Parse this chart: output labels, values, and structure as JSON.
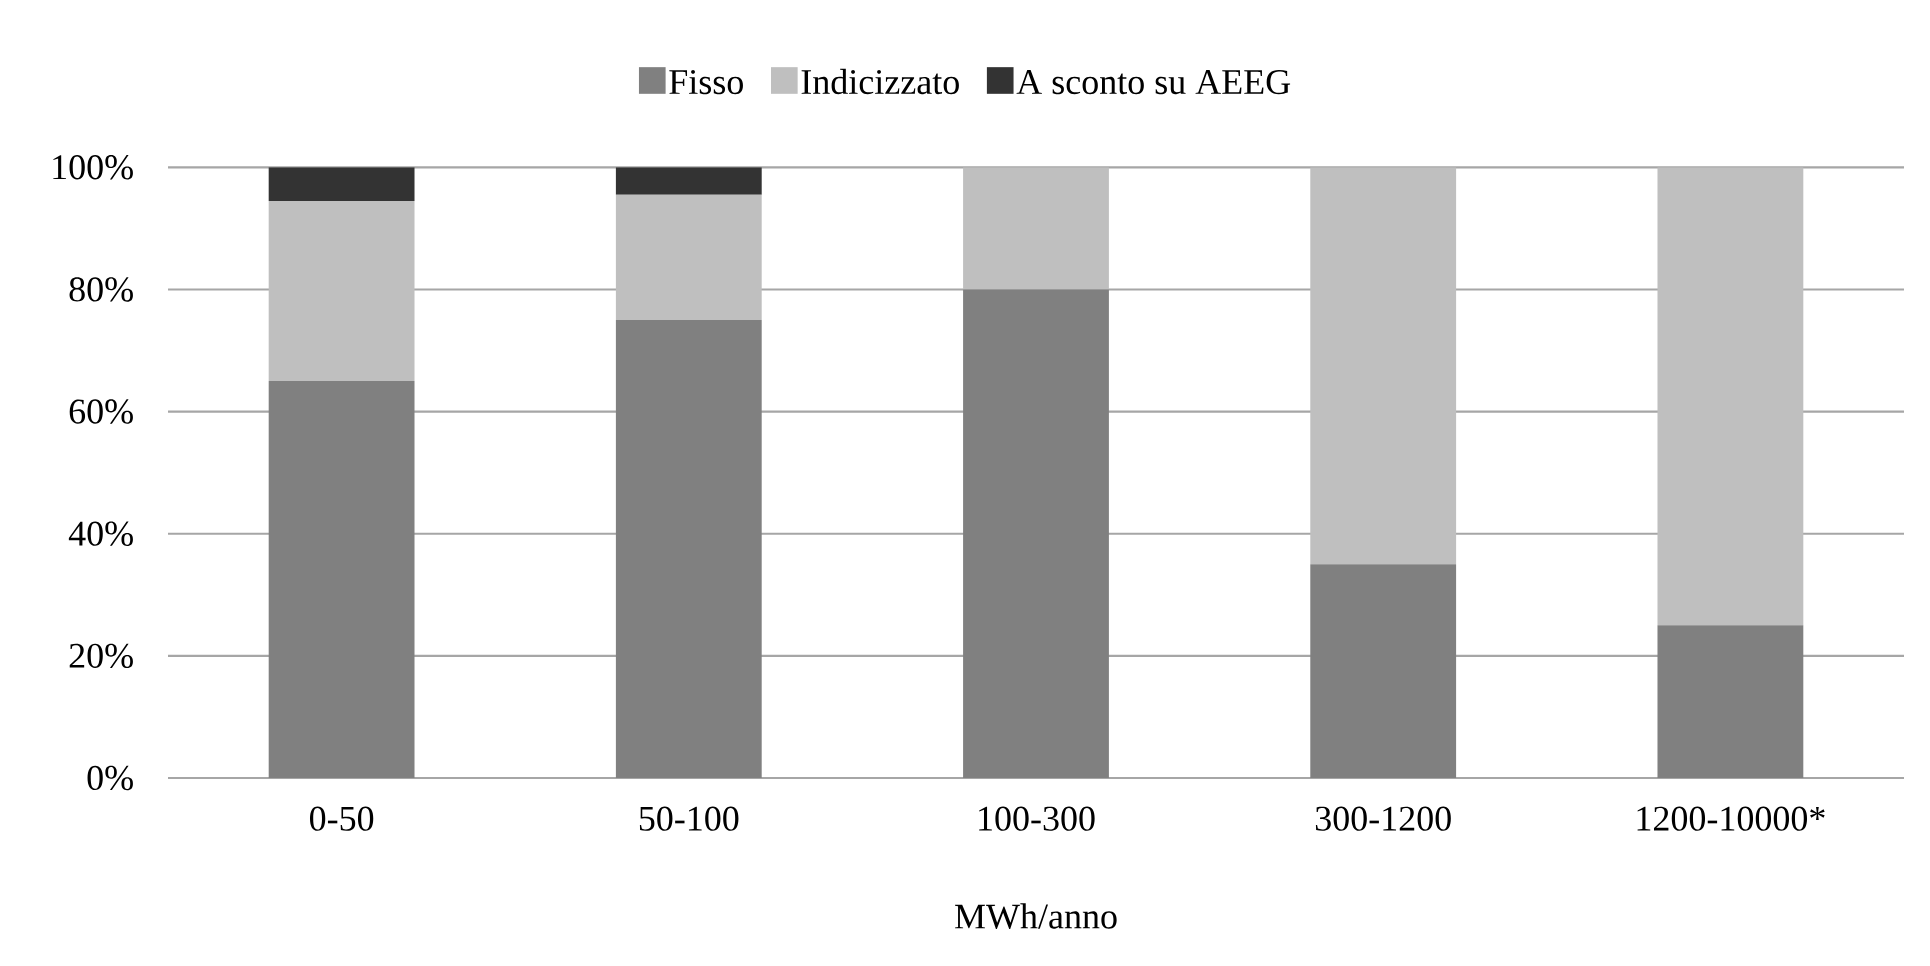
{
  "chart_data": {
    "type": "bar",
    "stacked": true,
    "xlabel": "MWh/anno",
    "categories": [
      "0-50",
      "50-100",
      "100-300",
      "300-1200",
      "1200-10000*"
    ],
    "series": [
      {
        "name": "Fisso",
        "color": "#808080",
        "values": [
          65,
          75,
          80,
          35,
          25
        ]
      },
      {
        "name": "Indicizzato",
        "color": "#bfbfbf",
        "values": [
          29.5,
          20.5,
          20,
          65,
          75
        ]
      },
      {
        "name": "A sconto su AEEG",
        "color": "#333333",
        "values": [
          5.5,
          4.5,
          0,
          0,
          0
        ]
      }
    ],
    "ylim": [
      0,
      100
    ],
    "yticks": [
      {
        "value": 0,
        "label": "0%"
      },
      {
        "value": 20,
        "label": "20%"
      },
      {
        "value": 40,
        "label": "40%"
      },
      {
        "value": 60,
        "label": "60%"
      },
      {
        "value": 80,
        "label": "80%"
      },
      {
        "value": 100,
        "label": "100%"
      }
    ],
    "grid": "y",
    "legend": "top"
  }
}
